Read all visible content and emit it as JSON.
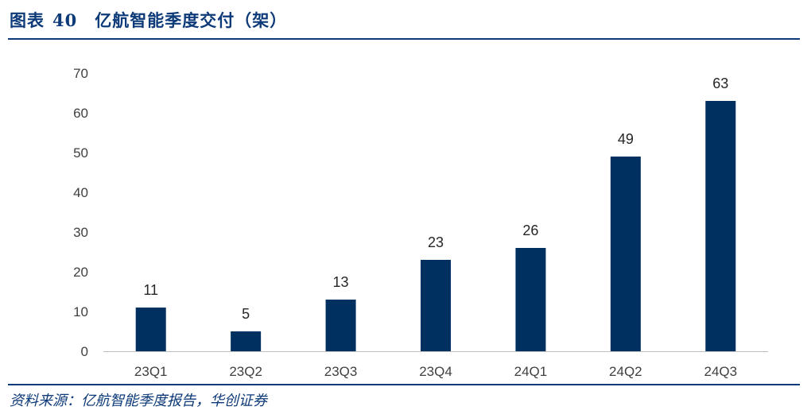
{
  "figure": {
    "label": "图表",
    "number": "40",
    "title": "亿航智能季度交付（架）"
  },
  "source": "资料来源：亿航智能季度报告，华创证券",
  "colors": {
    "bar": "#003060",
    "header": "#0d3a78",
    "axis": "#bfbfbf"
  },
  "chart_data": {
    "type": "bar",
    "title": "亿航智能季度交付（架）",
    "categories": [
      "23Q1",
      "23Q2",
      "23Q3",
      "23Q4",
      "24Q1",
      "24Q2",
      "24Q3"
    ],
    "values": [
      11,
      5,
      13,
      23,
      26,
      49,
      63
    ],
    "ylim": [
      0,
      70
    ],
    "yticks": [
      0,
      10,
      20,
      30,
      40,
      50,
      60,
      70
    ],
    "xlabel": "",
    "ylabel": "",
    "grid": false,
    "legend": "none",
    "data_labels": true
  }
}
